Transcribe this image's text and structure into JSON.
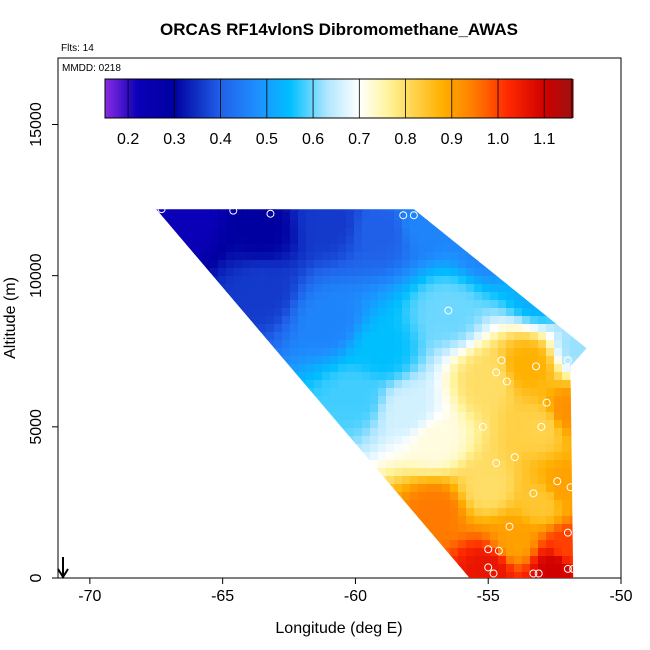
{
  "chart_data": {
    "type": "heatmap",
    "title": "ORCAS RF14vlonS Dibromomethane_AWAS",
    "annotations": {
      "flights": "Flts: 14",
      "date": "MMDD: 0218"
    },
    "xlabel": "Longitude (deg E)",
    "ylabel": "Altitude (m)",
    "xlim": [
      -71.2,
      -50
    ],
    "ylim": [
      0,
      17200
    ],
    "xticks": [
      -70,
      -65,
      -60,
      -55,
      -50
    ],
    "xtick_labels": [
      "-70",
      "-65",
      "-60",
      "-55",
      "-50"
    ],
    "yticks": [
      0,
      5000,
      10000,
      15000
    ],
    "ytick_labels": [
      "0",
      "5000",
      "10000",
      "15000"
    ],
    "colorbar": {
      "range": [
        0.15,
        1.16
      ],
      "ticks": [
        0.2,
        0.3,
        0.4,
        0.5,
        0.6,
        0.7,
        0.8,
        0.9,
        1.0,
        1.1
      ],
      "tick_labels": [
        "0.2",
        "0.3",
        "0.4",
        "0.5",
        "0.6",
        "0.7",
        "0.8",
        "0.9",
        "1.0",
        "1.1"
      ],
      "stops": [
        [
          0.15,
          "#8a2be2"
        ],
        [
          0.22,
          "#0a00b8"
        ],
        [
          0.3,
          "#0000a0"
        ],
        [
          0.4,
          "#2060e8"
        ],
        [
          0.48,
          "#1e90ff"
        ],
        [
          0.55,
          "#00bfff"
        ],
        [
          0.63,
          "#aee6ff"
        ],
        [
          0.7,
          "#ffffff"
        ],
        [
          0.76,
          "#fff5a0"
        ],
        [
          0.82,
          "#ffd24a"
        ],
        [
          0.88,
          "#ffb000"
        ],
        [
          0.95,
          "#ff7a00"
        ],
        [
          1.02,
          "#ff2a00"
        ],
        [
          1.1,
          "#d00000"
        ],
        [
          1.16,
          "#a01010"
        ]
      ]
    },
    "domain": {
      "description_note": "filled region bounded by these lon/alt vertices",
      "vertices": [
        [
          -67.5,
          12200
        ],
        [
          -57.8,
          12200
        ],
        [
          -51.3,
          7600
        ],
        [
          -51.9,
          7000
        ],
        [
          -51.8,
          0
        ],
        [
          -55.7,
          0
        ]
      ]
    },
    "anchors": [
      [
        -66.5,
        12000,
        0.22
      ],
      [
        -63.5,
        11500,
        0.3
      ],
      [
        -61.0,
        11800,
        0.36
      ],
      [
        -59.0,
        11500,
        0.4
      ],
      [
        -57.5,
        11800,
        0.46
      ],
      [
        -55.0,
        11000,
        0.46
      ],
      [
        -53.0,
        9500,
        0.52
      ],
      [
        -51.5,
        7600,
        0.62
      ],
      [
        -63.5,
        9500,
        0.36
      ],
      [
        -61.0,
        8500,
        0.46
      ],
      [
        -59.0,
        7500,
        0.55
      ],
      [
        -56.5,
        8800,
        0.6
      ],
      [
        -60.0,
        6000,
        0.58
      ],
      [
        -58.0,
        5500,
        0.66
      ],
      [
        -57.0,
        4500,
        0.72
      ],
      [
        -55.0,
        6500,
        0.8
      ],
      [
        -53.5,
        7000,
        0.88
      ],
      [
        -53.0,
        5000,
        0.82
      ],
      [
        -52.0,
        5500,
        0.92
      ],
      [
        -55.0,
        3000,
        0.8
      ],
      [
        -53.0,
        2500,
        0.84
      ],
      [
        -54.0,
        1200,
        0.9
      ],
      [
        -52.0,
        1000,
        1.0
      ],
      [
        -55.0,
        300,
        1.06
      ],
      [
        -52.5,
        300,
        1.1
      ],
      [
        -57.0,
        2200,
        0.95
      ],
      [
        -52.2,
        3000,
        0.9
      ]
    ],
    "samples": [
      [
        -67.3,
        12200
      ],
      [
        -64.6,
        12150
      ],
      [
        -63.2,
        12050
      ],
      [
        -58.2,
        12000
      ],
      [
        -57.8,
        12000
      ],
      [
        -56.7,
        12050
      ],
      [
        -55.0,
        11950
      ],
      [
        -56.5,
        8850
      ],
      [
        -54.5,
        7200
      ],
      [
        -54.7,
        6800
      ],
      [
        -54.3,
        6500
      ],
      [
        -53.2,
        7000
      ],
      [
        -52.0,
        7200
      ],
      [
        -52.8,
        5800
      ],
      [
        -55.2,
        5000
      ],
      [
        -53.0,
        5000
      ],
      [
        -54.7,
        3800
      ],
      [
        -54.0,
        4000
      ],
      [
        -53.3,
        2800
      ],
      [
        -52.4,
        3200
      ],
      [
        -51.9,
        3000
      ],
      [
        -54.2,
        1700
      ],
      [
        -55.0,
        950
      ],
      [
        -54.6,
        900
      ],
      [
        -52.0,
        1500
      ],
      [
        -55.0,
        350
      ],
      [
        -52.0,
        300
      ],
      [
        -51.8,
        300
      ],
      [
        -54.8,
        150
      ],
      [
        -53.3,
        150
      ],
      [
        -53.1,
        150
      ]
    ]
  }
}
